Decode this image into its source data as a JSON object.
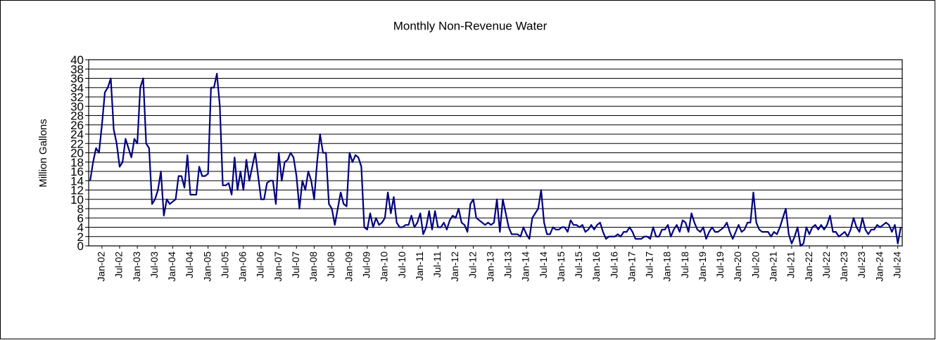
{
  "chart_data": {
    "type": "line",
    "title": "Monthly Non-Revenue Water",
    "y_label": "Million Gallons",
    "categories": [
      null,
      null,
      null,
      null,
      "Jan-02",
      null,
      null,
      null,
      null,
      null,
      "Jul-02",
      null,
      null,
      null,
      null,
      null,
      "Jan-03",
      null,
      null,
      null,
      null,
      null,
      "Jul-03",
      null,
      null,
      null,
      null,
      null,
      "Jan-04",
      null,
      null,
      null,
      null,
      null,
      "Jul-04",
      null,
      null,
      null,
      null,
      null,
      "Jan-05",
      null,
      null,
      null,
      null,
      null,
      "Jul-05",
      null,
      null,
      null,
      null,
      null,
      "Jan-06",
      null,
      null,
      null,
      null,
      null,
      "Jul-06",
      null,
      null,
      null,
      null,
      null,
      "Jan-07",
      null,
      null,
      null,
      null,
      null,
      "Jul-07",
      null,
      null,
      null,
      null,
      null,
      "Jan-08",
      null,
      null,
      null,
      null,
      null,
      "Jul-08",
      null,
      null,
      null,
      null,
      null,
      "Jan-09",
      null,
      null,
      null,
      null,
      null,
      "Jul-09",
      null,
      null,
      null,
      null,
      null,
      "Jan-10",
      null,
      null,
      null,
      null,
      null,
      "Jul-10",
      null,
      null,
      null,
      null,
      null,
      "Jan-11",
      null,
      null,
      null,
      null,
      null,
      "Jul-11",
      null,
      null,
      null,
      null,
      null,
      "Jan-12",
      null,
      null,
      null,
      null,
      null,
      "Jul-12",
      null,
      null,
      null,
      null,
      null,
      "Jan-13",
      null,
      null,
      null,
      null,
      null,
      "Jul-13",
      null,
      null,
      null,
      null,
      null,
      "Jan-14",
      null,
      null,
      null,
      null,
      null,
      "Jul-14",
      null,
      null,
      null,
      null,
      null,
      "Jan-15",
      null,
      null,
      null,
      null,
      null,
      "Jul-15",
      null,
      null,
      null,
      null,
      null,
      "Jan-16",
      null,
      null,
      null,
      null,
      null,
      "Jul-16",
      null,
      null,
      null,
      null,
      null,
      "Jan-17",
      null,
      null,
      null,
      null,
      null,
      "Jul-17",
      null,
      null,
      null,
      null,
      null,
      "Jan-18",
      null,
      null,
      null,
      null,
      null,
      "Jul-18",
      null,
      null,
      null,
      null,
      null,
      "Jan-19",
      null,
      null,
      null,
      null,
      null,
      "Jul-19",
      null,
      null,
      null,
      null,
      null,
      "Jan-20",
      null,
      null,
      null,
      null,
      null,
      "Jul-20",
      null,
      null,
      null,
      null,
      null,
      "Jan-21",
      null,
      null,
      null,
      null,
      null,
      "Jul-21",
      null,
      null,
      null,
      null,
      null,
      "Jan-22",
      null,
      null,
      null,
      null,
      null,
      "Jul-22",
      null,
      null,
      null,
      null,
      null,
      "Jan-23",
      null,
      null,
      null,
      null,
      null,
      "Jul-23",
      null,
      null,
      null,
      null,
      null,
      "Jan-24",
      null,
      null,
      null,
      null,
      null,
      "Jul-24",
      null
    ],
    "series": [
      {
        "name": "Non-Revenue Water",
        "color": "#000080",
        "values": [
          14,
          18,
          21,
          20,
          26,
          33,
          34,
          36,
          25,
          22,
          17,
          18,
          23,
          21,
          19,
          23,
          22,
          34,
          36,
          22,
          21,
          9,
          10,
          12,
          16,
          6.5,
          10,
          9,
          9.5,
          10,
          15,
          15,
          12.5,
          19.5,
          11,
          11,
          11,
          17,
          15,
          15,
          15.5,
          34,
          34,
          37,
          30,
          13,
          13,
          13.5,
          11,
          19,
          12,
          16,
          12,
          18.5,
          14,
          17,
          20,
          15,
          10,
          10,
          13.5,
          14,
          14,
          9,
          20,
          14,
          18,
          18.5,
          20,
          19,
          15,
          8,
          14,
          12,
          16,
          14,
          10,
          18,
          24,
          20,
          20,
          9,
          8,
          4.5,
          8,
          11.5,
          9,
          8.5,
          20,
          18,
          19.5,
          19,
          17,
          4,
          3.5,
          7,
          4,
          6,
          4.5,
          5,
          6,
          11.5,
          7,
          10.5,
          5,
          4,
          4,
          4.5,
          4.5,
          6.5,
          4,
          5,
          7,
          2.5,
          4,
          7.5,
          3.5,
          7.5,
          4,
          4,
          5,
          3.5,
          5.5,
          6.5,
          6,
          8,
          5,
          4.5,
          3,
          9,
          10,
          6,
          5.5,
          5,
          4.5,
          5,
          4.5,
          5,
          10,
          3,
          10,
          7,
          4,
          2.5,
          2.5,
          2.5,
          2,
          4,
          2.5,
          1.5,
          6,
          7,
          8,
          12,
          5,
          2.5,
          2.5,
          4,
          3.5,
          3.5,
          4,
          4,
          3,
          5.5,
          4.5,
          4.5,
          4,
          4.5,
          3,
          3.5,
          4.5,
          3.5,
          4.5,
          5,
          3,
          1.5,
          2,
          2,
          2,
          2.5,
          2,
          3,
          3,
          4,
          3,
          1.5,
          1.5,
          1.5,
          2,
          2,
          1.5,
          4,
          2,
          2,
          3.5,
          3.5,
          4.5,
          2,
          3.5,
          4.5,
          3,
          5.5,
          5,
          3,
          7,
          5,
          3.5,
          3,
          4,
          1.5,
          3,
          4,
          3,
          3,
          3.5,
          4,
          5,
          3,
          1.5,
          3,
          4.5,
          3,
          3.5,
          5,
          5,
          11.5,
          5,
          3.5,
          3,
          3,
          3,
          2,
          3,
          2.5,
          4,
          6,
          8,
          2.5,
          0.5,
          2,
          4,
          0,
          0.5,
          4,
          2.5,
          4,
          4.5,
          3.5,
          4.5,
          3.5,
          4.5,
          6.5,
          3,
          3,
          2,
          2.5,
          3,
          2,
          3.5,
          6,
          4,
          3,
          6,
          3.5,
          2.5,
          3.5,
          3.5,
          4.5,
          4,
          4.5,
          5,
          4.5,
          3,
          4.5,
          0.5,
          4
        ]
      }
    ],
    "ylim": [
      0,
      40
    ],
    "yticks": [
      0,
      2,
      4,
      6,
      8,
      10,
      12,
      14,
      16,
      18,
      20,
      22,
      24,
      26,
      28,
      30,
      32,
      34,
      36,
      38,
      40
    ],
    "grid": true
  }
}
